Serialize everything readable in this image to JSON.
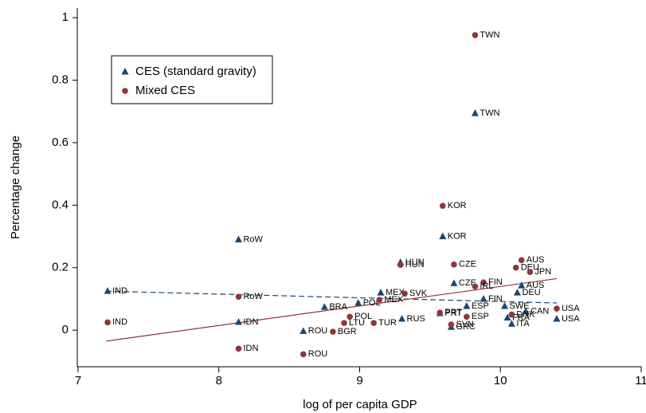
{
  "chart_data": {
    "type": "scatter",
    "x_label": "Percentage change",
    "y_label": "Percentage change",
    "xlabel": "log of per capita  GDP",
    "xlim": [
      7,
      11
    ],
    "ylim": [
      -0.117,
      1.031
    ],
    "xticks": [
      7,
      8,
      9,
      10,
      11
    ],
    "yticks": [
      0,
      0.2,
      0.4,
      0.6,
      0.8,
      1
    ],
    "series": [
      {
        "name": "CES (standard gravity)",
        "color": "#1a476f",
        "marker": "triangle",
        "x": [
          7.21,
          8.14,
          8.14,
          8.6,
          9.29,
          9.59,
          9.82,
          9.67,
          9.15,
          8.75,
          8.99,
          9.3,
          9.76,
          9.88,
          9.57,
          9.65,
          10.15,
          10.12,
          10.4,
          10.03,
          10.18,
          10.08,
          10.05
        ],
        "values": [
          0.125,
          0.29,
          0.026,
          -0.003,
          0.217,
          0.3,
          0.694,
          0.15,
          0.12,
          0.074,
          0.087,
          0.036,
          0.077,
          0.1,
          0.054,
          0.01,
          0.143,
          0.12,
          0.036,
          0.077,
          0.06,
          0.02,
          0.04
        ],
        "labels": [
          "IND",
          "RoW",
          "IDN",
          "ROU",
          "HUN",
          "KOR",
          "TWN",
          "CZE",
          "MEX",
          "BRA",
          "POL",
          "RUS",
          "ESP",
          "FIN",
          "PRT",
          "GRC",
          "AUS",
          "DEU",
          "USA",
          "SWE",
          "CAN",
          "ITA",
          "FRA"
        ]
      },
      {
        "name": "Mixed CES",
        "color": "#90353b",
        "marker": "circle",
        "x": [
          9.82,
          9.59,
          9.29,
          9.67,
          10.15,
          10.11,
          10.21,
          9.88,
          9.82,
          8.14,
          7.21,
          8.14,
          8.6,
          8.81,
          8.89,
          9.1,
          8.93,
          9.32,
          9.76,
          9.57,
          9.65,
          10.4,
          9.14,
          10.08
        ],
        "values": [
          0.944,
          0.398,
          0.209,
          0.21,
          0.224,
          0.2,
          0.186,
          0.153,
          0.14,
          0.107,
          0.025,
          -0.059,
          -0.077,
          -0.005,
          0.023,
          0.023,
          0.043,
          0.117,
          0.043,
          0.056,
          0.018,
          0.069,
          0.097,
          0.05
        ],
        "labels": [
          "TWN",
          "KOR",
          "HUN",
          "CZE",
          "AUS",
          "DEU",
          "JPN",
          "FIN",
          "IRL",
          "RoW",
          "IND",
          "IDN",
          "ROU",
          "BGR",
          "LTU",
          "TUR",
          "POL",
          "SVK",
          "ESP",
          "PRT",
          "SVN",
          "USA",
          "MEX",
          "DNK"
        ]
      }
    ],
    "fit_lines": [
      {
        "series": 0,
        "dash": true,
        "x": [
          7.2,
          10.4
        ],
        "values": [
          0.125,
          0.087
        ]
      },
      {
        "series": 1,
        "dash": false,
        "x": [
          7.2,
          10.4
        ],
        "values": [
          -0.035,
          0.165
        ]
      }
    ]
  }
}
